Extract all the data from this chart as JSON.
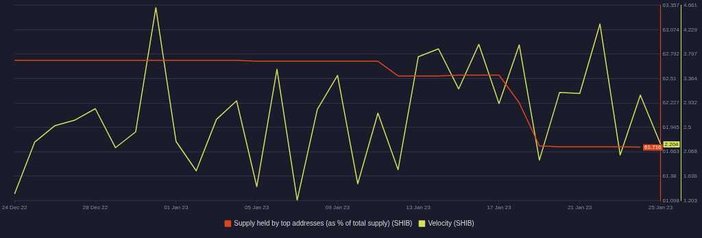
{
  "chart_data": {
    "type": "line",
    "categories": [
      "24 Dec 22",
      null,
      null,
      null,
      "28 Dec 22",
      null,
      null,
      null,
      "01 Jan 23",
      null,
      null,
      null,
      "05 Jan 23",
      null,
      null,
      null,
      "09 Jan 23",
      null,
      null,
      null,
      "13 Jan 23",
      null,
      null,
      null,
      "17 Jan 23",
      null,
      null,
      null,
      "21 Jan 23",
      null,
      null,
      null,
      "25 Jan 23"
    ],
    "series": [
      {
        "name": "Supply held by top addresses (as % of total supply) (SHIB)",
        "color": "#e2451b",
        "values": [
          62.72,
          62.72,
          62.72,
          62.72,
          62.72,
          62.72,
          62.72,
          62.72,
          62.72,
          62.72,
          62.72,
          62.72,
          62.71,
          62.71,
          62.71,
          62.71,
          62.71,
          62.71,
          62.71,
          62.54,
          62.54,
          62.54,
          62.55,
          62.55,
          62.55,
          62.23,
          61.73,
          61.72,
          61.72,
          61.72,
          61.72,
          61.716,
          null
        ],
        "value_labels": [
          null,
          null,
          null,
          null,
          null,
          null,
          null,
          null,
          null,
          null,
          null,
          null,
          null,
          null,
          null,
          null,
          null,
          null,
          null,
          null,
          null,
          null,
          null,
          null,
          null,
          null,
          null,
          null,
          null,
          null,
          null,
          "61.716",
          null
        ]
      },
      {
        "name": "Velocity (SHIB)",
        "color": "#d5e15a",
        "axis": "y2",
        "values": [
          1.32,
          2.24,
          2.53,
          2.63,
          2.83,
          2.14,
          2.42,
          4.62,
          2.25,
          1.73,
          2.64,
          2.97,
          1.45,
          3.53,
          1.21,
          2.82,
          3.42,
          1.5,
          2.75,
          1.75,
          3.75,
          3.89,
          3.18,
          3.97,
          2.92,
          3.96,
          1.92,
          3.12,
          3.1,
          4.33,
          2.01,
          3.07,
          2.204
        ],
        "value_labels": [
          null,
          null,
          null,
          null,
          null,
          null,
          null,
          null,
          null,
          null,
          null,
          null,
          null,
          null,
          null,
          null,
          null,
          null,
          null,
          null,
          null,
          null,
          null,
          null,
          null,
          null,
          null,
          null,
          null,
          null,
          null,
          null,
          "2.204"
        ]
      }
    ],
    "ylim": [
      61.098,
      63.357
    ],
    "yticks": [
      61.098,
      61.38,
      61.663,
      61.945,
      62.227,
      62.51,
      62.792,
      63.074,
      63.357
    ],
    "y2lim": [
      1.203,
      4.661
    ],
    "y2ticks": [
      1.203,
      1.636,
      2.068,
      2.5,
      2.932,
      3.364,
      3.797,
      4.229,
      4.661
    ],
    "grid": "y",
    "legend": "bottom",
    "marker": "none",
    "line_style": "solid"
  }
}
